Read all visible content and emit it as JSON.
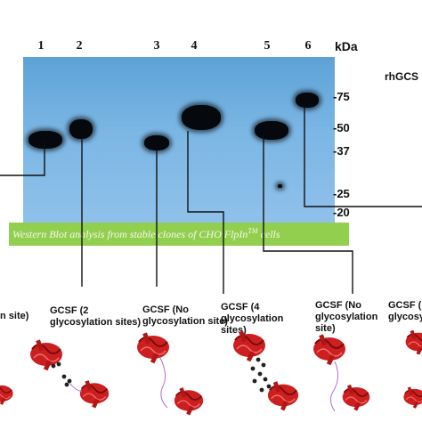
{
  "lanes": [
    "1",
    "2",
    "3",
    "4",
    "5",
    "6"
  ],
  "kda_label": "kDa",
  "header_label": "rhGCS",
  "markers": [
    "-75",
    "-50",
    "-37",
    "-25",
    "-20"
  ],
  "caption": {
    "text": "Western Blot analysis from stable clones of CHO FlpIn",
    "superscript": "TM",
    "suffix": " cells"
  },
  "labels": {
    "lane1": "n site)",
    "lane2_line1": "GCSF (2",
    "lane2_line2": "glycosylation sites)",
    "lane3_line1": "GCSF (No",
    "lane3_line2": "glycosylation site)",
    "lane4_line1": "GCSF  (4",
    "lane4_line2": "glycosylation",
    "lane4_line3": "sites)",
    "lane5_line1": "GCSF (No",
    "lane5_line2": "glycosylation",
    "lane5_line3": "site)",
    "lane6_line1": "GCSF (",
    "lane6_line2": "glycosyla"
  },
  "colors": {
    "blot_top": "#5da2d6",
    "blot_bottom": "#8fc1ea",
    "caption_bg": "#92cf4f",
    "protein": "#cc1f1f"
  },
  "icons": [
    "gcsf-protein-icon"
  ]
}
